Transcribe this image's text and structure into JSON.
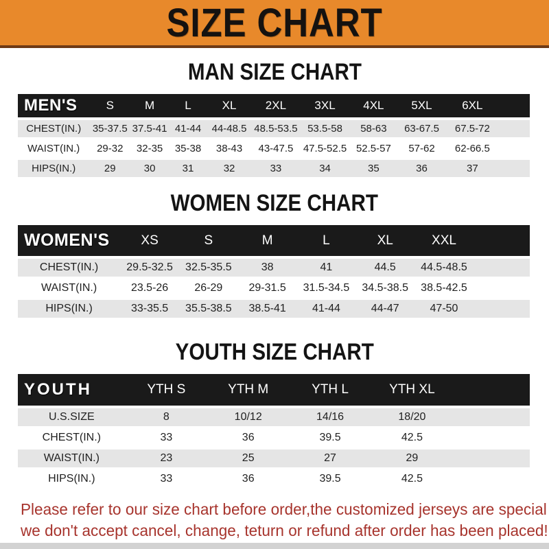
{
  "banner": {
    "title": "SIZE CHART"
  },
  "colors": {
    "banner_bg": "#E8892B",
    "banner_border": "#6E3A16",
    "table_header_bg": "#1A1A1A",
    "row_alt_bg": "#E5E5E5",
    "notice_text": "#A7342D"
  },
  "men": {
    "heading": "MAN SIZE CHART",
    "label": "MEN'S",
    "sizes": [
      "S",
      "M",
      "L",
      "XL",
      "2XL",
      "3XL",
      "4XL",
      "5XL",
      "6XL"
    ],
    "rows": [
      {
        "label": "CHEST(IN.)",
        "values": [
          "35-37.5",
          "37.5-41",
          "41-44",
          "44-48.5",
          "48.5-53.5",
          "53.5-58",
          "58-63",
          "63-67.5",
          "67.5-72"
        ]
      },
      {
        "label": "WAIST(IN.)",
        "values": [
          "29-32",
          "32-35",
          "35-38",
          "38-43",
          "43-47.5",
          "47.5-52.5",
          "52.5-57",
          "57-62",
          "62-66.5"
        ]
      },
      {
        "label": "HIPS(IN.)",
        "values": [
          "29",
          "30",
          "31",
          "32",
          "33",
          "34",
          "35",
          "36",
          "37"
        ]
      }
    ]
  },
  "women": {
    "heading": "WOMEN SIZE CHART",
    "label": "WOMEN'S",
    "sizes": [
      "XS",
      "S",
      "M",
      "L",
      "XL",
      "XXL"
    ],
    "rows": [
      {
        "label": "CHEST(IN.)",
        "values": [
          "29.5-32.5",
          "32.5-35.5",
          "38",
          "41",
          "44.5",
          "44.5-48.5"
        ]
      },
      {
        "label": "WAIST(IN.)",
        "values": [
          "23.5-26",
          "26-29",
          "29-31.5",
          "31.5-34.5",
          "34.5-38.5",
          "38.5-42.5"
        ]
      },
      {
        "label": "HIPS(IN.)",
        "values": [
          "33-35.5",
          "35.5-38.5",
          "38.5-41",
          "41-44",
          "44-47",
          "47-50"
        ]
      }
    ]
  },
  "youth": {
    "heading": "YOUTH SIZE CHART",
    "label": "YOUTH",
    "sizes": [
      "YTH S",
      "YTH M",
      "YTH L",
      "YTH XL"
    ],
    "rows": [
      {
        "label": "U.S.SIZE",
        "values": [
          "8",
          "10/12",
          "14/16",
          "18/20"
        ]
      },
      {
        "label": "CHEST(IN.)",
        "values": [
          "33",
          "36",
          "39.5",
          "42.5"
        ]
      },
      {
        "label": "WAIST(IN.)",
        "values": [
          "23",
          "25",
          "27",
          "29"
        ]
      },
      {
        "label": "HIPS(IN.)",
        "values": [
          "33",
          "36",
          "39.5",
          "42.5"
        ]
      }
    ]
  },
  "notice": {
    "line1": "Please refer to our size chart before order,the customized jerseys are special products,",
    "line2": "we don't accept cancel, change, teturn or refund after order has been placed!"
  }
}
